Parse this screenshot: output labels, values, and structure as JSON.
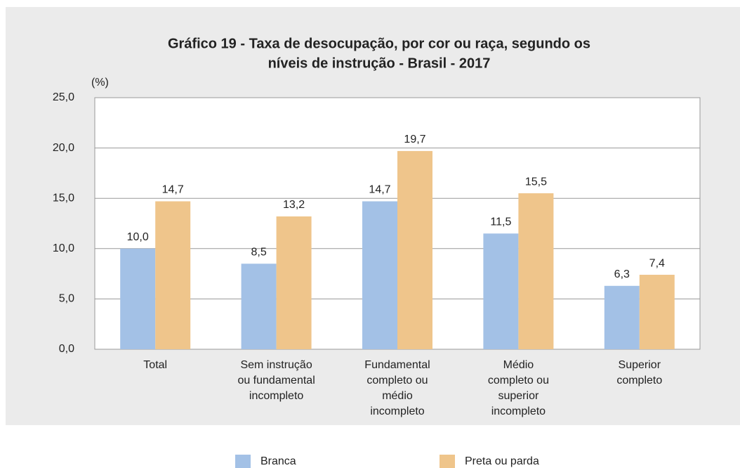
{
  "chart_data": {
    "type": "bar",
    "title": [
      "Gráfico 19 - Taxa de desocupação, por cor ou raça, segundo os",
      "níveis de instrução - Brasil - 2017"
    ],
    "ylabel": "(%)",
    "categories": [
      [
        "Total"
      ],
      [
        "Sem instrução",
        "ou fundamental",
        "incompleto"
      ],
      [
        "Fundamental",
        "completo ou",
        "médio",
        "incompleto"
      ],
      [
        "Médio",
        "completo ou",
        "superior",
        "incompleto"
      ],
      [
        "Superior",
        "completo"
      ]
    ],
    "series": [
      {
        "name": "Branca",
        "color": "#a3c1e6",
        "values": [
          10.0,
          8.5,
          14.7,
          11.5,
          6.3
        ],
        "value_labels": [
          "10,0",
          "8,5",
          "14,7",
          "11,5",
          "6,3"
        ]
      },
      {
        "name": "Preta ou parda",
        "color": "#efc58b",
        "values": [
          14.7,
          13.2,
          19.7,
          15.5,
          7.4
        ],
        "value_labels": [
          "14,7",
          "13,2",
          "19,7",
          "15,5",
          "7,4"
        ]
      }
    ],
    "ylim": [
      0,
      25
    ],
    "yticks": [
      {
        "value": 0,
        "label": "0,0"
      },
      {
        "value": 5,
        "label": "5,0"
      },
      {
        "value": 10,
        "label": "10,0"
      },
      {
        "value": 15,
        "label": "15,0"
      },
      {
        "value": 20,
        "label": "20,0"
      },
      {
        "value": 25,
        "label": "25,0"
      }
    ],
    "grid": true
  }
}
